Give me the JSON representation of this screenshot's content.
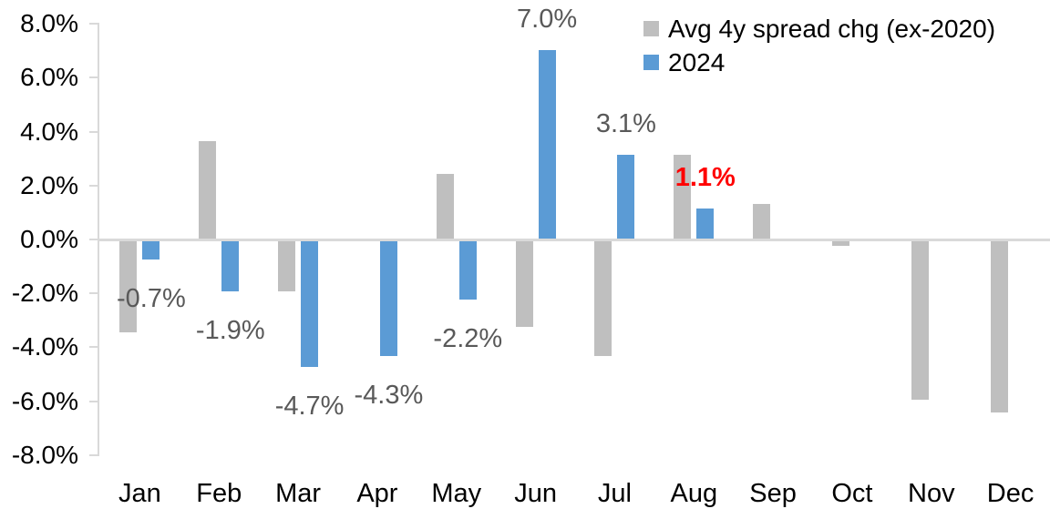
{
  "chart_data": {
    "type": "bar",
    "title": "",
    "categories": [
      "Jan",
      "Feb",
      "Mar",
      "Apr",
      "May",
      "Jun",
      "Jul",
      "Aug",
      "Sep",
      "Oct",
      "Nov",
      "Dec"
    ],
    "series": [
      {
        "name": "Avg 4y spread chg (ex-2020)",
        "color": "#BFBFBF",
        "values": [
          -3.4,
          3.6,
          -1.9,
          0.0,
          2.4,
          -3.2,
          -4.3,
          3.1,
          1.3,
          -0.2,
          -5.9,
          -6.4
        ]
      },
      {
        "name": "2024",
        "color": "#5B9BD5",
        "values": [
          -0.7,
          -1.9,
          -4.7,
          -4.3,
          -2.2,
          7.0,
          3.1,
          1.1,
          null,
          null,
          null,
          null
        ],
        "labels": [
          {
            "text": "-0.7%",
            "color": "#595959",
            "bold": false
          },
          {
            "text": "-1.9%",
            "color": "#595959",
            "bold": false
          },
          {
            "text": "-4.7%",
            "color": "#595959",
            "bold": false
          },
          {
            "text": "-4.3%",
            "color": "#595959",
            "bold": false
          },
          {
            "text": "-2.2%",
            "color": "#595959",
            "bold": false
          },
          {
            "text": "7.0%",
            "color": "#595959",
            "bold": false
          },
          {
            "text": "3.1%",
            "color": "#595959",
            "bold": false
          },
          {
            "text": "1.1%",
            "color": "#FF0000",
            "bold": true
          },
          null,
          null,
          null,
          null
        ]
      }
    ],
    "yaxis": {
      "min": -8,
      "max": 8,
      "step": 2,
      "tick_labels": [
        "8.0%",
        "6.0%",
        "4.0%",
        "2.0%",
        "0.0%",
        "-2.0%",
        "-4.0%",
        "-6.0%",
        "-8.0%"
      ]
    },
    "legend": {
      "position": "top-right",
      "items": [
        "Avg 4y spread chg (ex-2020)",
        "2024"
      ]
    },
    "colors": {
      "axis_line": "#D9D9D9",
      "tick_label": "#000000",
      "data_label": "#595959",
      "highlight": "#FF0000",
      "background": "#FFFFFF"
    }
  }
}
